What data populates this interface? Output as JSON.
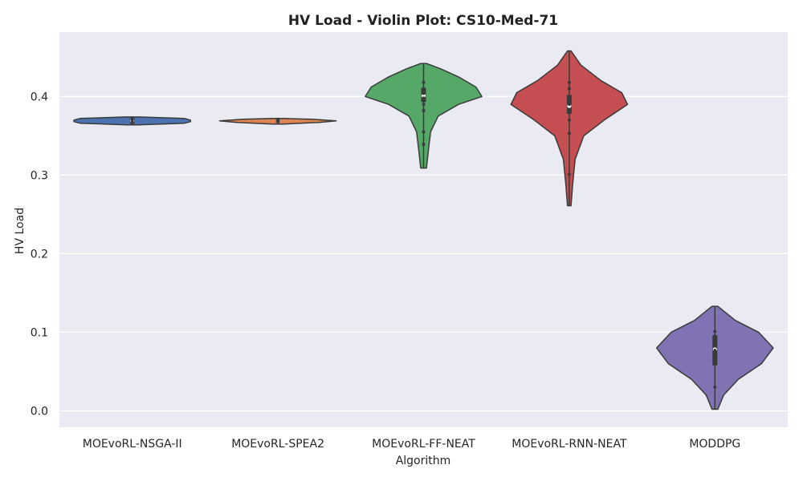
{
  "chart_data": {
    "type": "violin",
    "title": "HV Load - Violin Plot: CS10-Med-71",
    "xlabel": "Algorithm",
    "ylabel": "HV Load",
    "ylim": [
      -0.021,
      0.482
    ],
    "yticks": [
      "0.0",
      "0.1",
      "0.2",
      "0.3",
      "0.4"
    ],
    "grid": true,
    "categories": [
      "MOEvoRL-NSGA-II",
      "MOEvoRL-SPEA2",
      "MOEvoRL-FF-NEAT",
      "MOEvoRL-RNN-NEAT",
      "MODDPG"
    ],
    "series": [
      {
        "color": "#4c72b0",
        "min": 0.364,
        "max": 0.374,
        "q1": 0.366,
        "median": 0.369,
        "q3": 0.372,
        "points": [
          0.366,
          0.369,
          0.372
        ],
        "profile": [
          [
            0.364,
            0.1
          ],
          [
            0.366,
            0.9
          ],
          [
            0.368,
            1.0
          ],
          [
            0.369,
            1.0
          ],
          [
            0.37,
            1.0
          ],
          [
            0.372,
            0.9
          ],
          [
            0.374,
            0.1
          ]
        ]
      },
      {
        "color": "#dd8452",
        "min": 0.365,
        "max": 0.372,
        "q1": 0.367,
        "median": 0.369,
        "q3": 0.371,
        "points": [
          0.368,
          0.369,
          0.371
        ],
        "profile": [
          [
            0.365,
            0.1
          ],
          [
            0.367,
            0.7
          ],
          [
            0.369,
            1.0
          ],
          [
            0.371,
            0.6
          ],
          [
            0.372,
            0.1
          ]
        ]
      },
      {
        "color": "#55a868",
        "min": 0.309,
        "max": 0.442,
        "q1": 0.393,
        "median": 0.401,
        "q3": 0.411,
        "points": [
          0.339,
          0.355,
          0.382,
          0.39,
          0.398,
          0.404,
          0.41,
          0.418
        ],
        "profile": [
          [
            0.309,
            0.05
          ],
          [
            0.33,
            0.08
          ],
          [
            0.355,
            0.12
          ],
          [
            0.375,
            0.25
          ],
          [
            0.39,
            0.6
          ],
          [
            0.4,
            1.0
          ],
          [
            0.412,
            0.9
          ],
          [
            0.425,
            0.6
          ],
          [
            0.435,
            0.3
          ],
          [
            0.442,
            0.05
          ]
        ]
      },
      {
        "color": "#c44e52",
        "min": 0.261,
        "max": 0.458,
        "q1": 0.378,
        "median": 0.388,
        "q3": 0.402,
        "points": [
          0.301,
          0.353,
          0.37,
          0.38,
          0.39,
          0.4,
          0.41,
          0.418
        ],
        "profile": [
          [
            0.261,
            0.03
          ],
          [
            0.29,
            0.06
          ],
          [
            0.32,
            0.1
          ],
          [
            0.35,
            0.25
          ],
          [
            0.37,
            0.6
          ],
          [
            0.39,
            1.0
          ],
          [
            0.405,
            0.9
          ],
          [
            0.42,
            0.55
          ],
          [
            0.44,
            0.2
          ],
          [
            0.458,
            0.03
          ]
        ]
      },
      {
        "color": "#8172b3",
        "min": 0.002,
        "max": 0.133,
        "q1": 0.058,
        "median": 0.078,
        "q3": 0.096,
        "points": [
          0.03,
          0.062,
          0.07,
          0.077,
          0.085,
          0.095,
          0.101
        ],
        "profile": [
          [
            0.002,
            0.05
          ],
          [
            0.02,
            0.15
          ],
          [
            0.04,
            0.4
          ],
          [
            0.06,
            0.8
          ],
          [
            0.08,
            1.0
          ],
          [
            0.1,
            0.75
          ],
          [
            0.115,
            0.35
          ],
          [
            0.133,
            0.05
          ]
        ]
      }
    ]
  }
}
